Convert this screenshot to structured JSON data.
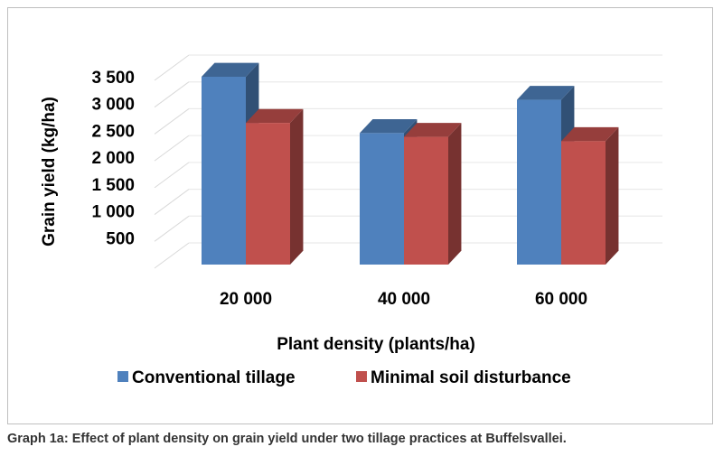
{
  "caption": "Graph 1a: Effect of plant density on grain yield under two tillage practices at Buffelsvallei.",
  "chart_data": {
    "type": "bar",
    "style": "3d-clustered-column",
    "xlabel": "Plant density (plants/ha)",
    "ylabel": "Grain yield (kg/ha)",
    "categories": [
      "20 000",
      "40 000",
      "60 000"
    ],
    "y_ticks": [
      500,
      1000,
      1500,
      2000,
      2500,
      3000,
      3500
    ],
    "y_tick_labels": [
      "500",
      "1 000",
      "1 500",
      "2 000",
      "2 500",
      "3 000",
      "3 500"
    ],
    "ylim": [
      0,
      3500
    ],
    "grid": true,
    "legend_position": "bottom",
    "series": [
      {
        "name": "Conventional tillage",
        "color": "#4f81bd",
        "values": [
          3500,
          2450,
          3070
        ]
      },
      {
        "name": "Minimal soil disturbance",
        "color": "#c0504d",
        "values": [
          2640,
          2380,
          2300
        ]
      }
    ]
  }
}
